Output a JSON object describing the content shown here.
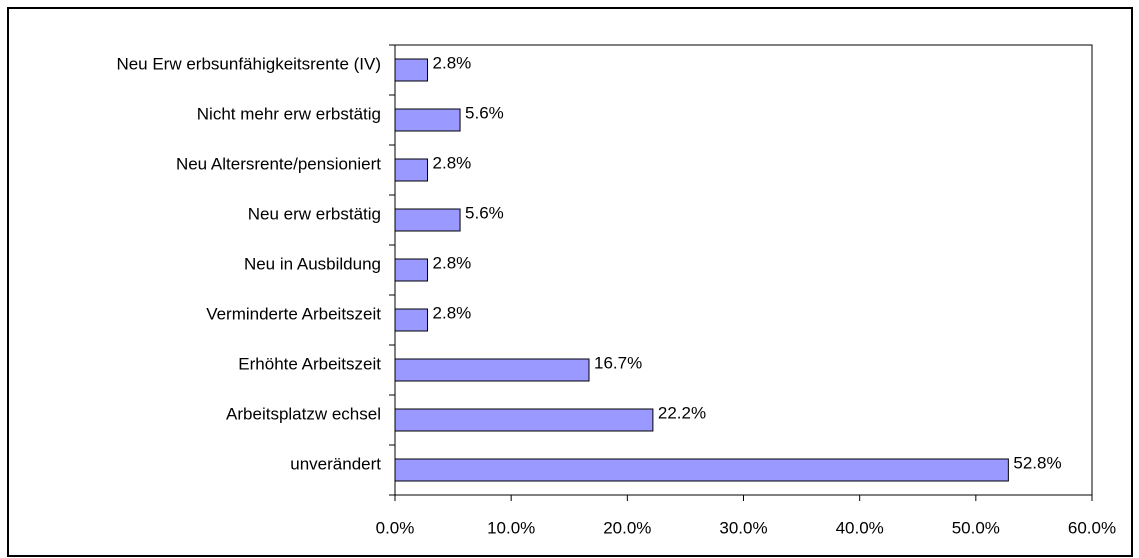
{
  "chart_data": {
    "type": "barh",
    "categories": [
      "Neu Erw erbsunfähigkeitsrente (IV)",
      "Nicht mehr erw erbstätig",
      "Neu Altersrente/pensioniert",
      "Neu erw erbstätig",
      "Neu in Ausbildung",
      "Verminderte Arbeitszeit",
      "Erhöhte Arbeitszeit",
      "Arbeitsplatzw echsel",
      "unverändert"
    ],
    "values": [
      2.8,
      5.6,
      2.8,
      5.6,
      2.8,
      2.8,
      16.7,
      22.2,
      52.8
    ],
    "value_labels": [
      "2.8%",
      "5.6%",
      "2.8%",
      "5.6%",
      "2.8%",
      "2.8%",
      "16.7%",
      "22.2%",
      "52.8%"
    ],
    "color": "#9999ff",
    "xlim": [
      0,
      60
    ],
    "xticks": [
      {
        "value": 0,
        "label": "0.0%"
      },
      {
        "value": 10,
        "label": "10.0%"
      },
      {
        "value": 20,
        "label": "20.0%"
      },
      {
        "value": 30,
        "label": "30.0%"
      },
      {
        "value": 40,
        "label": "40.0%"
      },
      {
        "value": 50,
        "label": "50.0%"
      },
      {
        "value": 60,
        "label": "60.0%"
      }
    ],
    "grid": false
  }
}
